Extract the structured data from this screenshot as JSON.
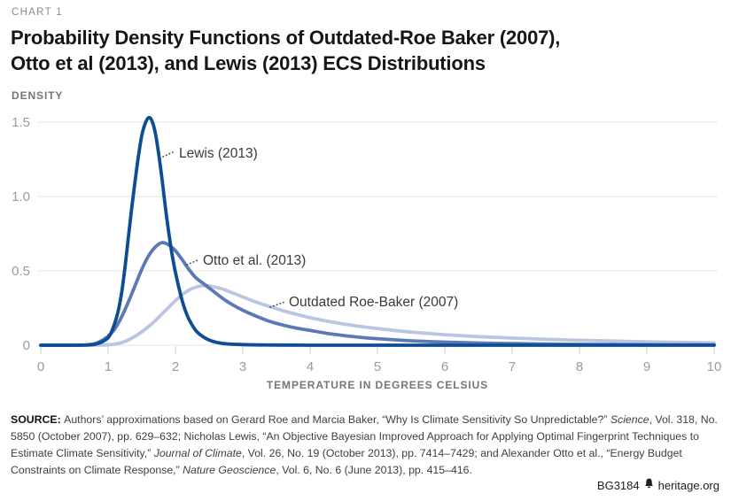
{
  "header": {
    "eyebrow": "CHART 1",
    "title_lines": [
      "Probability Density Functions of Outdated-Roe Baker (2007),",
      "Otto et al (2013), and Lewis (2013) ECS Distributions"
    ]
  },
  "chart_data": {
    "type": "line",
    "title": "Probability Density Functions of Outdated-Roe Baker (2007), Otto et al (2013), and Lewis (2013) ECS Distributions",
    "xlabel": "TEMPERATURE IN DEGREES CELSIUS",
    "ylabel": "DENSITY",
    "xlim": [
      0,
      10
    ],
    "ylim": [
      0,
      1.5
    ],
    "grid": "horizontal-only",
    "legend": "inline-annotations",
    "x_ticks": [
      {
        "v": 0,
        "label": "0"
      },
      {
        "v": 1,
        "label": "1"
      },
      {
        "v": 2,
        "label": "2"
      },
      {
        "v": 3,
        "label": "3"
      },
      {
        "v": 4,
        "label": "4"
      },
      {
        "v": 5,
        "label": "5"
      },
      {
        "v": 6,
        "label": "6"
      },
      {
        "v": 7,
        "label": "7"
      },
      {
        "v": 8,
        "label": "8"
      },
      {
        "v": 9,
        "label": "9"
      },
      {
        "v": 10,
        "label": "10"
      }
    ],
    "y_ticks": [
      {
        "v": 0,
        "label": "0"
      },
      {
        "v": 0.5,
        "label": "0.5"
      },
      {
        "v": 1,
        "label": "1.0"
      },
      {
        "v": 1.5,
        "label": "1.5"
      }
    ],
    "series": [
      {
        "name": "Outdated Roe-Baker (2007)",
        "color": "#b9c5e1",
        "peak": {
          "x": 2.4,
          "density": 0.4
        },
        "points": [
          [
            0,
            0
          ],
          [
            0.9,
            0.001
          ],
          [
            1.0,
            0.003
          ],
          [
            1.1,
            0.008
          ],
          [
            1.2,
            0.018
          ],
          [
            1.3,
            0.035
          ],
          [
            1.4,
            0.06
          ],
          [
            1.5,
            0.09
          ],
          [
            1.6,
            0.125
          ],
          [
            1.7,
            0.165
          ],
          [
            1.8,
            0.21
          ],
          [
            1.9,
            0.255
          ],
          [
            2.0,
            0.3
          ],
          [
            2.1,
            0.34
          ],
          [
            2.2,
            0.37
          ],
          [
            2.3,
            0.39
          ],
          [
            2.4,
            0.4
          ],
          [
            2.5,
            0.398
          ],
          [
            2.6,
            0.39
          ],
          [
            2.7,
            0.378
          ],
          [
            2.8,
            0.36
          ],
          [
            2.9,
            0.343
          ],
          [
            3.0,
            0.325
          ],
          [
            3.2,
            0.29
          ],
          [
            3.4,
            0.26
          ],
          [
            3.6,
            0.232
          ],
          [
            3.8,
            0.207
          ],
          [
            4.0,
            0.185
          ],
          [
            4.25,
            0.162
          ],
          [
            4.5,
            0.142
          ],
          [
            4.75,
            0.126
          ],
          [
            5.0,
            0.112
          ],
          [
            5.25,
            0.099
          ],
          [
            5.5,
            0.088
          ],
          [
            6.0,
            0.071
          ],
          [
            6.5,
            0.058
          ],
          [
            7.0,
            0.048
          ],
          [
            7.5,
            0.04
          ],
          [
            8.0,
            0.033
          ],
          [
            8.5,
            0.028
          ],
          [
            9.0,
            0.023
          ],
          [
            9.5,
            0.019
          ],
          [
            10,
            0.016
          ]
        ]
      },
      {
        "name": "Otto et al. (2013)",
        "color": "#5c78b5",
        "peak": {
          "x": 1.8,
          "density": 0.69
        },
        "points": [
          [
            0,
            0
          ],
          [
            0.6,
            0
          ],
          [
            0.7,
            0.003
          ],
          [
            0.8,
            0.01
          ],
          [
            0.9,
            0.03
          ],
          [
            1.0,
            0.06
          ],
          [
            1.1,
            0.11
          ],
          [
            1.2,
            0.19
          ],
          [
            1.3,
            0.29
          ],
          [
            1.4,
            0.4
          ],
          [
            1.5,
            0.51
          ],
          [
            1.6,
            0.6
          ],
          [
            1.7,
            0.66
          ],
          [
            1.8,
            0.69
          ],
          [
            1.9,
            0.675
          ],
          [
            2.0,
            0.635
          ],
          [
            2.1,
            0.575
          ],
          [
            2.2,
            0.51
          ],
          [
            2.3,
            0.455
          ],
          [
            2.4,
            0.42
          ],
          [
            2.5,
            0.385
          ],
          [
            2.6,
            0.35
          ],
          [
            2.7,
            0.315
          ],
          [
            2.8,
            0.285
          ],
          [
            3.0,
            0.235
          ],
          [
            3.2,
            0.195
          ],
          [
            3.4,
            0.16
          ],
          [
            3.6,
            0.135
          ],
          [
            3.8,
            0.115
          ],
          [
            4.0,
            0.1
          ],
          [
            4.25,
            0.08
          ],
          [
            4.5,
            0.065
          ],
          [
            4.75,
            0.053
          ],
          [
            5.0,
            0.044
          ],
          [
            5.5,
            0.03
          ],
          [
            6.0,
            0.021
          ],
          [
            6.5,
            0.015
          ],
          [
            7.0,
            0.011
          ],
          [
            7.5,
            0.008
          ],
          [
            8.0,
            0.006
          ],
          [
            8.5,
            0.0045
          ],
          [
            9.0,
            0.0035
          ],
          [
            9.5,
            0.003
          ],
          [
            10,
            0.0025
          ]
        ]
      },
      {
        "name": "Lewis (2013)",
        "color": "#0e4d92",
        "peak": {
          "x": 1.6,
          "density": 1.53
        },
        "points": [
          [
            0,
            0
          ],
          [
            0.5,
            0
          ],
          [
            0.7,
            0.002
          ],
          [
            0.8,
            0.006
          ],
          [
            0.9,
            0.02
          ],
          [
            1.0,
            0.05
          ],
          [
            1.05,
            0.09
          ],
          [
            1.1,
            0.15
          ],
          [
            1.15,
            0.23
          ],
          [
            1.2,
            0.35
          ],
          [
            1.25,
            0.52
          ],
          [
            1.3,
            0.72
          ],
          [
            1.35,
            0.92
          ],
          [
            1.4,
            1.1
          ],
          [
            1.45,
            1.27
          ],
          [
            1.5,
            1.41
          ],
          [
            1.55,
            1.49
          ],
          [
            1.6,
            1.53
          ],
          [
            1.65,
            1.51
          ],
          [
            1.7,
            1.43
          ],
          [
            1.75,
            1.29
          ],
          [
            1.8,
            1.12
          ],
          [
            1.85,
            0.93
          ],
          [
            1.9,
            0.76
          ],
          [
            1.95,
            0.61
          ],
          [
            2.0,
            0.49
          ],
          [
            2.05,
            0.39
          ],
          [
            2.1,
            0.3
          ],
          [
            2.15,
            0.23
          ],
          [
            2.2,
            0.175
          ],
          [
            2.3,
            0.1
          ],
          [
            2.4,
            0.06
          ],
          [
            2.5,
            0.035
          ],
          [
            2.6,
            0.02
          ],
          [
            2.7,
            0.012
          ],
          [
            2.8,
            0.008
          ],
          [
            3.0,
            0.004
          ],
          [
            3.25,
            0.002
          ],
          [
            3.5,
            0.001
          ],
          [
            4,
            0
          ],
          [
            5,
            0
          ],
          [
            6,
            0
          ],
          [
            7,
            0
          ],
          [
            8,
            0
          ],
          [
            9,
            0
          ],
          [
            10,
            0
          ]
        ]
      }
    ]
  },
  "source": {
    "segments": [
      {
        "t": "SOURCE: ",
        "b": true
      },
      {
        "t": "Authors’ approximations based on Gerard Roe and Marcia Baker, “Why Is Climate Sensitivity So Unpredictable?” "
      },
      {
        "t": "Science",
        "i": true
      },
      {
        "t": ", Vol. 318, No. 5850 (October 2007), pp. 629–632; Nicholas Lewis, “An Objective Bayesian Improved Approach for Applying Optimal Fingerprint Techniques to Estimate Climate Sensitivity,” "
      },
      {
        "t": "Journal of Climate",
        "i": true
      },
      {
        "t": ", Vol. 26, No. 19 (October 2013), pp. 7414–7429; and Alexander Otto et al., “Energy Budget Constraints on Climate Response,” "
      },
      {
        "t": "Nature Geoscience",
        "i": true
      },
      {
        "t": ", Vol. 6, No. 6 (June 2013), pp. 415–416."
      }
    ]
  },
  "footer": {
    "doc_id": "BG3184",
    "site": "heritage.org",
    "icon": "heritage-bell-icon"
  }
}
